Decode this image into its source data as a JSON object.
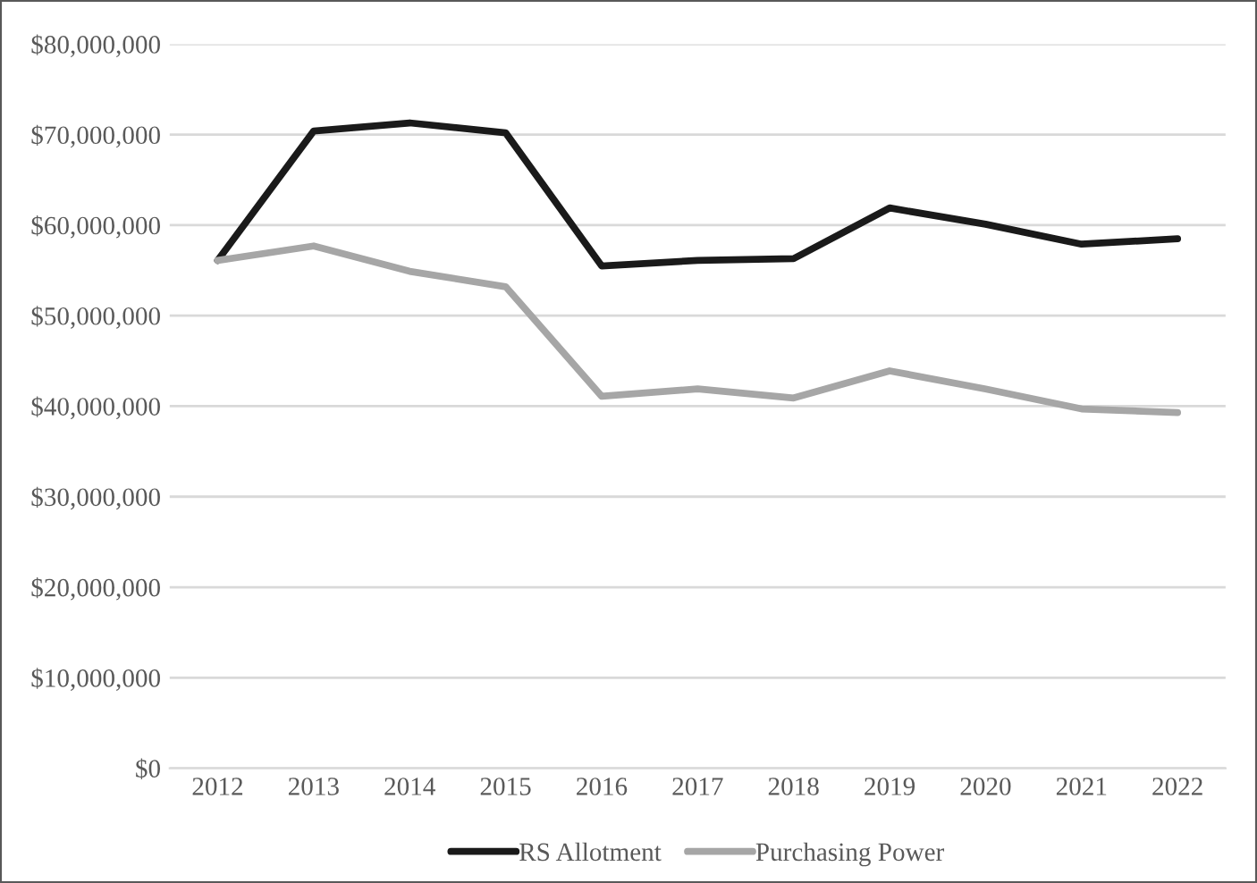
{
  "chart_data": {
    "type": "line",
    "categories": [
      "2012",
      "2013",
      "2014",
      "2015",
      "2016",
      "2017",
      "2018",
      "2019",
      "2020",
      "2021",
      "2022"
    ],
    "series": [
      {
        "name": "RS Allotment",
        "color": "#1a1a1a",
        "values": [
          56100000,
          70400000,
          71300000,
          70200000,
          55500000,
          56100000,
          56300000,
          61900000,
          60100000,
          57900000,
          58500000
        ]
      },
      {
        "name": "Purchasing Power",
        "color": "#a6a6a6",
        "values": [
          56100000,
          57700000,
          54900000,
          53200000,
          41100000,
          41900000,
          40900000,
          43900000,
          41900000,
          39700000,
          39300000
        ]
      }
    ],
    "ylim": [
      0,
      80000000
    ],
    "yticks": [
      {
        "value": 0,
        "label": "$0"
      },
      {
        "value": 10000000,
        "label": "$10,000,000"
      },
      {
        "value": 20000000,
        "label": "$20,000,000"
      },
      {
        "value": 30000000,
        "label": "$30,000,000"
      },
      {
        "value": 40000000,
        "label": "$40,000,000"
      },
      {
        "value": 50000000,
        "label": "$50,000,000"
      },
      {
        "value": 60000000,
        "label": "$60,000,000"
      },
      {
        "value": 70000000,
        "label": "$70,000,000"
      },
      {
        "value": 80000000,
        "label": "$80,000,000"
      }
    ],
    "grid": "y",
    "legend": "bottom",
    "marker": "none",
    "line_style": "solid"
  }
}
